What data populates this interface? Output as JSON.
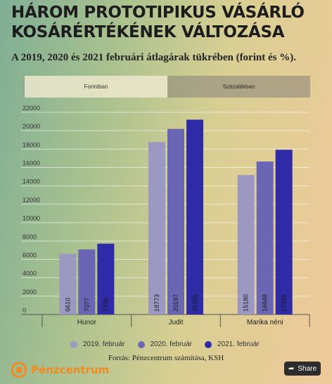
{
  "header": {
    "title": "HÁROM PROTOTIPIKUS VÁSÁRLÓ KOSÁRÉRTÉKÉNEK VÁLTOZÁSA",
    "subtitle": "A 2019, 2020 és 2021 februári átlagárak tükrében (forint és %)."
  },
  "tabs": [
    {
      "label": "Forintban",
      "active": true
    },
    {
      "label": "Százalékban",
      "active": false
    }
  ],
  "chart_data": {
    "type": "bar",
    "title": "",
    "xlabel": "",
    "ylabel": "",
    "categories": [
      "Hunor",
      "Judit",
      "Marika néni"
    ],
    "series": [
      {
        "name": "2019. február",
        "values": [
          6610,
          18773,
          15180
        ],
        "color": "#9b98c1"
      },
      {
        "name": "2020. február",
        "values": [
          7077,
          20197,
          16648
        ],
        "color": "#6a66b3"
      },
      {
        "name": "2021. február",
        "values": [
          7705,
          21201,
          17931
        ],
        "color": "#2f2aa6"
      }
    ],
    "ylim": [
      0,
      22000
    ],
    "yticks": [
      0,
      2000,
      4000,
      6000,
      8000,
      10000,
      12000,
      14000,
      16000,
      18000,
      20000,
      22000
    ],
    "grid": true,
    "legend_position": "bottom",
    "data_labels": "inside-bottom-rotated"
  },
  "footer": {
    "source": "Forrás: Pénzcentrum számítása, KSH",
    "logo_text": "Pénzcentrum",
    "share_label": "Share",
    "logo_icon": "pc-logo-icon",
    "share_icon": "share-icon"
  }
}
